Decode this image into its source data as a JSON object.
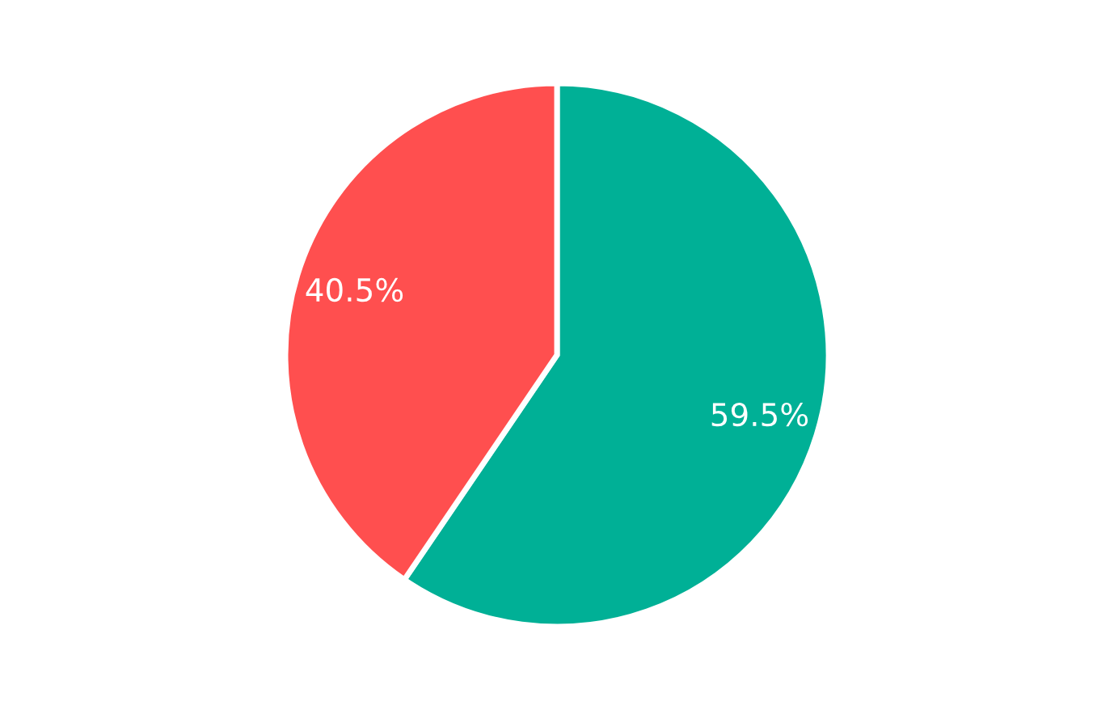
{
  "chart_data": {
    "type": "pie",
    "categories": [
      null,
      null
    ],
    "values": [
      59.5,
      40.5
    ],
    "colors": [
      "#00b096",
      "#ff4f4f"
    ],
    "value_labels": [
      "59.5%",
      "40.5%"
    ],
    "legend": false
  }
}
